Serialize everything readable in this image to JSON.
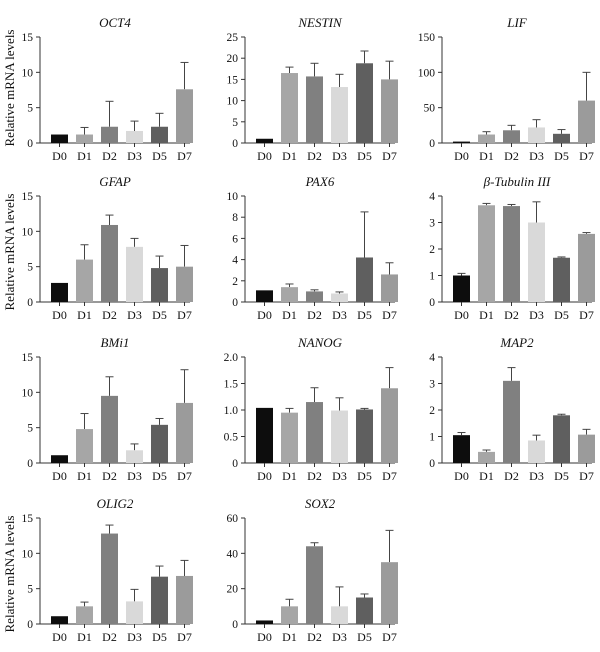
{
  "figure": {
    "ylabel": "Relative mRNA levels",
    "categories": [
      "D0",
      "D1",
      "D2",
      "D3",
      "D5",
      "D7"
    ],
    "bar_colors": [
      "#0d0d0d",
      "#a6a6a6",
      "#808080",
      "#d9d9d9",
      "#5f5f5f",
      "#9b9b9b"
    ]
  },
  "chart_data": [
    {
      "type": "bar",
      "title": "OCT4",
      "categories": [
        "D0",
        "D1",
        "D2",
        "D3",
        "D5",
        "D7"
      ],
      "values": [
        1.2,
        1.2,
        2.3,
        1.7,
        2.3,
        7.6
      ],
      "errors": [
        0,
        1.0,
        3.6,
        1.4,
        1.9,
        3.8
      ],
      "ylim": [
        0,
        15
      ],
      "yticks": [
        "0",
        "5",
        "10",
        "15"
      ]
    },
    {
      "type": "bar",
      "title": "NESTIN",
      "categories": [
        "D0",
        "D1",
        "D2",
        "D3",
        "D5",
        "D7"
      ],
      "values": [
        1.0,
        16.5,
        15.7,
        13.2,
        18.8,
        15.0
      ],
      "errors": [
        0,
        1.4,
        3.1,
        3.0,
        2.9,
        4.3
      ],
      "ylim": [
        0,
        25
      ],
      "yticks": [
        "0",
        "5",
        "10",
        "15",
        "20",
        "25"
      ]
    },
    {
      "type": "bar",
      "title": "LIF",
      "categories": [
        "D0",
        "D1",
        "D2",
        "D3",
        "D5",
        "D7"
      ],
      "values": [
        2,
        12,
        18,
        22,
        13,
        60
      ],
      "errors": [
        0,
        4,
        7,
        11,
        6,
        40
      ],
      "ylim": [
        0,
        150
      ],
      "yticks": [
        "0",
        "50",
        "100",
        "150"
      ]
    },
    {
      "type": "bar",
      "title": "GFAP",
      "categories": [
        "D0",
        "D1",
        "D2",
        "D3",
        "D5",
        "D7"
      ],
      "values": [
        2.7,
        6.0,
        10.9,
        7.8,
        4.8,
        5.0
      ],
      "errors": [
        0,
        2.1,
        1.4,
        1.2,
        1.7,
        3.0
      ],
      "ylim": [
        0,
        15
      ],
      "yticks": [
        "0",
        "5",
        "10",
        "15"
      ]
    },
    {
      "type": "bar",
      "title": "PAX6",
      "categories": [
        "D0",
        "D1",
        "D2",
        "D3",
        "D5",
        "D7"
      ],
      "values": [
        1.1,
        1.4,
        1.0,
        0.8,
        4.2,
        2.6
      ],
      "errors": [
        0,
        0.3,
        0.15,
        0.15,
        4.3,
        1.1
      ],
      "ylim": [
        0,
        10
      ],
      "yticks": [
        "0",
        "2",
        "4",
        "6",
        "8",
        "10"
      ]
    },
    {
      "type": "bar",
      "title": "β-Tubulin III",
      "categories": [
        "D0",
        "D1",
        "D2",
        "D3",
        "D5",
        "D7"
      ],
      "values": [
        1.0,
        3.65,
        3.62,
        3.0,
        1.67,
        2.57
      ],
      "errors": [
        0.08,
        0.07,
        0.06,
        0.78,
        0.03,
        0.05
      ],
      "ylim": [
        0,
        4
      ],
      "yticks": [
        "0",
        "1",
        "2",
        "3",
        "4"
      ]
    },
    {
      "type": "bar",
      "title": "BMi1",
      "categories": [
        "D0",
        "D1",
        "D2",
        "D3",
        "D5",
        "D7"
      ],
      "values": [
        1.1,
        4.8,
        9.5,
        1.8,
        5.4,
        8.5
      ],
      "errors": [
        0,
        2.2,
        2.7,
        0.9,
        0.9,
        4.7
      ],
      "ylim": [
        0,
        15
      ],
      "yticks": [
        "0",
        "5",
        "10",
        "15"
      ]
    },
    {
      "type": "bar",
      "title": "NANOG",
      "categories": [
        "D0",
        "D1",
        "D2",
        "D3",
        "D5",
        "D7"
      ],
      "values": [
        1.04,
        0.95,
        1.15,
        0.99,
        1.01,
        1.41
      ],
      "errors": [
        0,
        0.08,
        0.27,
        0.24,
        0.02,
        0.39
      ],
      "ylim": [
        0,
        2.0
      ],
      "yticks": [
        "0",
        "0.5",
        "1.0",
        "1.5",
        "2.0"
      ]
    },
    {
      "type": "bar",
      "title": "MAP2",
      "categories": [
        "D0",
        "D1",
        "D2",
        "D3",
        "D5",
        "D7"
      ],
      "values": [
        1.05,
        0.42,
        3.1,
        0.85,
        1.8,
        1.07
      ],
      "errors": [
        0.1,
        0.07,
        0.5,
        0.2,
        0.04,
        0.2
      ],
      "ylim": [
        0,
        4
      ],
      "yticks": [
        "0",
        "1",
        "2",
        "3",
        "4"
      ]
    },
    {
      "type": "bar",
      "title": "OLIG2",
      "categories": [
        "D0",
        "D1",
        "D2",
        "D3",
        "D5",
        "D7"
      ],
      "values": [
        1.1,
        2.5,
        12.8,
        3.2,
        6.7,
        6.8
      ],
      "errors": [
        0,
        0.6,
        1.2,
        1.7,
        1.5,
        2.2
      ],
      "ylim": [
        0,
        15
      ],
      "yticks": [
        "0",
        "5",
        "10",
        "15"
      ]
    },
    {
      "type": "bar",
      "title": "SOX2",
      "categories": [
        "D0",
        "D1",
        "D2",
        "D3",
        "D5",
        "D7"
      ],
      "values": [
        2,
        10,
        44,
        10,
        15,
        35
      ],
      "errors": [
        0,
        4,
        2,
        11,
        2,
        18
      ],
      "ylim": [
        0,
        60
      ],
      "yticks": [
        "0",
        "20",
        "40",
        "60"
      ]
    }
  ]
}
